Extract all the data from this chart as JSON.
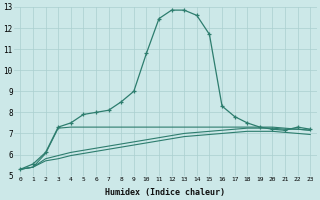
{
  "xlabel": "Humidex (Indice chaleur)",
  "x": [
    0,
    1,
    2,
    3,
    4,
    5,
    6,
    7,
    8,
    9,
    10,
    11,
    12,
    13,
    14,
    15,
    16,
    17,
    18,
    19,
    20,
    21,
    22,
    23
  ],
  "line1": [
    5.3,
    5.55,
    6.1,
    7.3,
    7.5,
    7.9,
    8.0,
    8.1,
    8.5,
    9.0,
    10.8,
    12.45,
    12.85,
    12.85,
    12.6,
    11.7,
    8.3,
    7.8,
    7.5,
    7.3,
    7.2,
    7.15,
    7.3,
    7.2
  ],
  "line2": [
    5.3,
    5.4,
    6.05,
    7.25,
    7.3,
    7.3,
    7.3,
    7.3,
    7.3,
    7.3,
    7.3,
    7.3,
    7.3,
    7.3,
    7.3,
    7.3,
    7.3,
    7.3,
    7.3,
    7.3,
    7.3,
    7.25,
    7.2,
    7.15
  ],
  "line3": [
    5.3,
    5.4,
    5.8,
    5.95,
    6.1,
    6.2,
    6.3,
    6.4,
    6.5,
    6.6,
    6.7,
    6.8,
    6.9,
    7.0,
    7.05,
    7.1,
    7.15,
    7.2,
    7.25,
    7.25,
    7.25,
    7.2,
    7.2,
    7.15
  ],
  "line4": [
    5.3,
    5.4,
    5.7,
    5.8,
    5.95,
    6.05,
    6.15,
    6.25,
    6.35,
    6.45,
    6.55,
    6.65,
    6.75,
    6.85,
    6.9,
    6.95,
    7.0,
    7.05,
    7.1,
    7.1,
    7.1,
    7.05,
    7.0,
    6.95
  ],
  "line1_markers": [
    0,
    1,
    2,
    3,
    4,
    5,
    6,
    7,
    8,
    9,
    10,
    11,
    12,
    13,
    14,
    15,
    16,
    17,
    18,
    19,
    20,
    21,
    22,
    23
  ],
  "ylim": [
    5,
    13
  ],
  "yticks": [
    5,
    6,
    7,
    8,
    9,
    10,
    11,
    12,
    13
  ],
  "bg_color": "#cce8e8",
  "line_color": "#2d7d6e",
  "grid_color": "#aacfcf"
}
